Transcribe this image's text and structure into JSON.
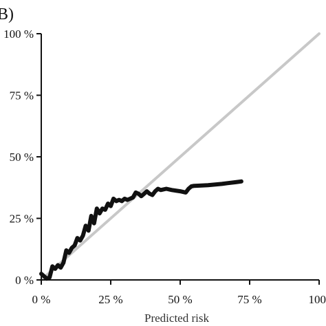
{
  "chart_data": {
    "type": "line",
    "panel_label": "B)",
    "xlabel": "Predicted risk",
    "ylabel": "",
    "xlim": [
      0,
      100
    ],
    "ylim": [
      0,
      100
    ],
    "x_ticks": [
      0,
      25,
      50,
      75,
      100
    ],
    "x_tick_labels": [
      "0 %",
      "25 %",
      "50 %",
      "75 %",
      "100"
    ],
    "y_ticks": [
      0,
      25,
      50,
      75,
      100
    ],
    "y_tick_labels": [
      "0 %",
      "25 %",
      "50 %",
      "75 %",
      "100 %"
    ],
    "grid": false,
    "series": [
      {
        "role": "reference",
        "color": "#c8c8c8",
        "x": [
          0,
          100
        ],
        "y": [
          0,
          100
        ]
      },
      {
        "role": "observed",
        "color": "#111111",
        "x": [
          0,
          1,
          2,
          3,
          4,
          5,
          6,
          7,
          8,
          9,
          10,
          11,
          12,
          13,
          14,
          15,
          16,
          17,
          18,
          19,
          20,
          21,
          22,
          23,
          24,
          25,
          26,
          27,
          28,
          29,
          30,
          31,
          32,
          33,
          34,
          35,
          36,
          37,
          38,
          39,
          40,
          41,
          42,
          43,
          45,
          47,
          50,
          52,
          53,
          54,
          55,
          57,
          60,
          62,
          65,
          67,
          70,
          72
        ],
        "y": [
          2.5,
          1.5,
          0.5,
          1,
          5.5,
          4.5,
          6,
          5,
          7,
          12,
          11,
          13,
          14,
          17,
          16,
          18,
          22,
          20,
          26,
          23,
          29,
          27,
          29,
          28.5,
          31,
          30,
          33,
          32,
          32.5,
          32,
          33,
          32.5,
          33,
          33.5,
          35.5,
          35,
          34,
          35,
          36,
          35,
          34.5,
          36,
          37,
          36.5,
          37,
          36.5,
          36,
          35.5,
          37,
          38,
          38.2,
          38.3,
          38.5,
          38.7,
          39,
          39.3,
          39.7,
          40
        ]
      }
    ]
  }
}
